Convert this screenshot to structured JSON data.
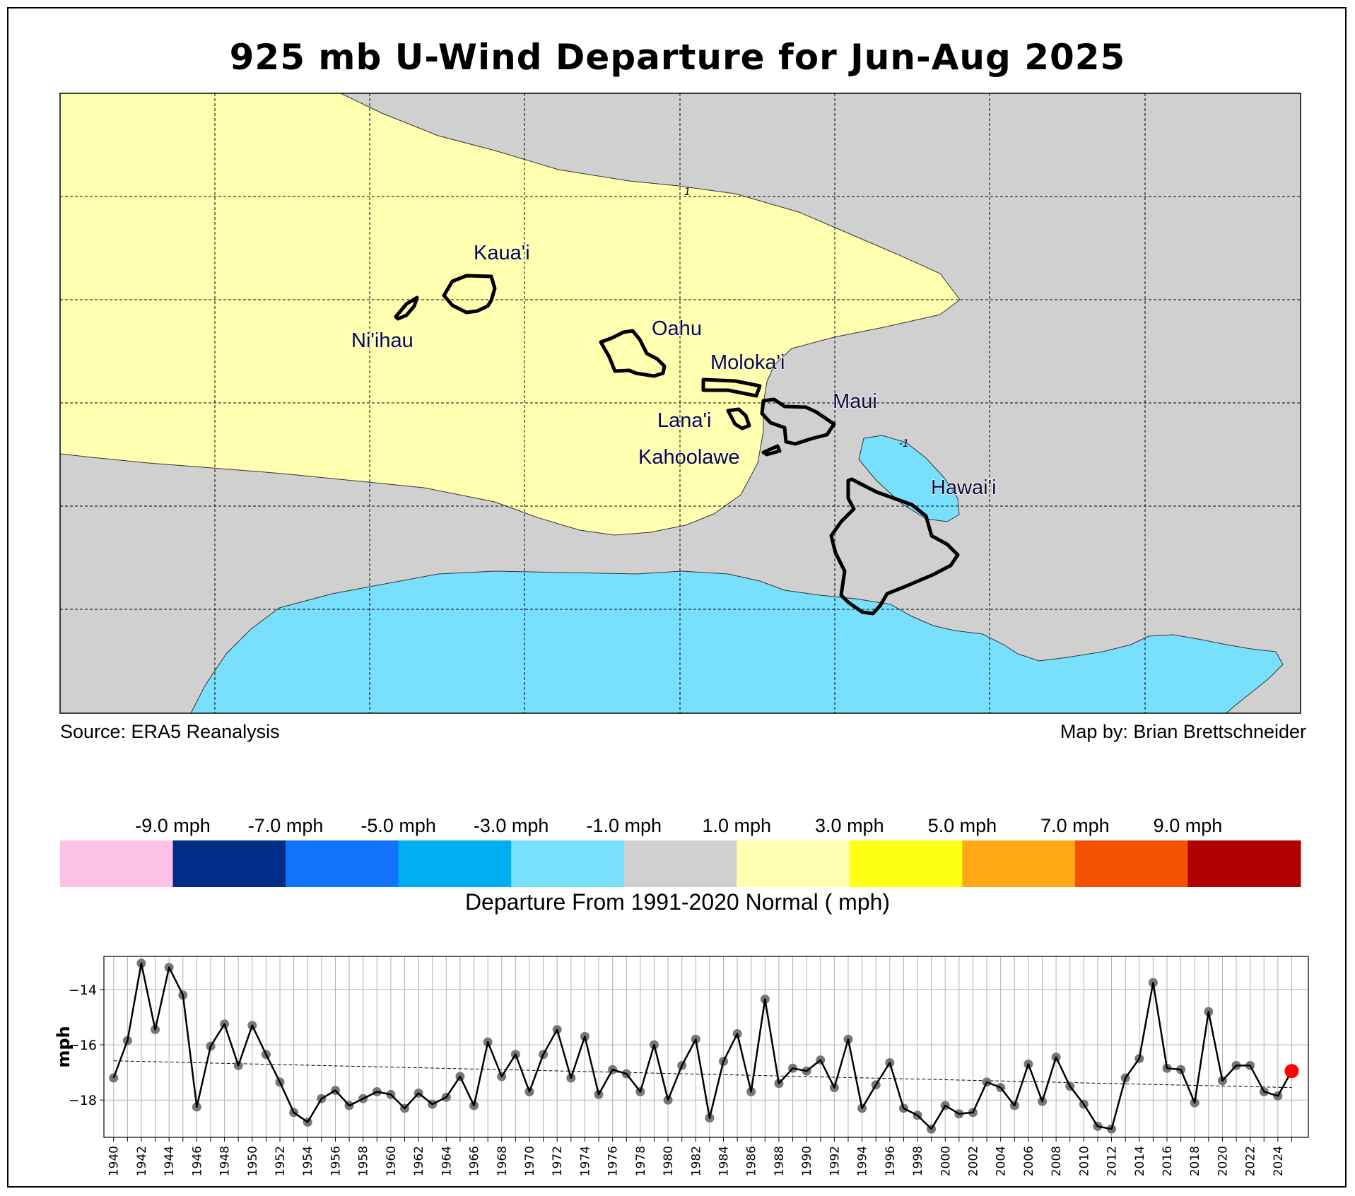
{
  "title": "925 mb U-Wind Departure for Jun-Aug 2025",
  "map": {
    "source_label": "Source: ERA5 Reanalysis",
    "credit_label": "Map by: Brian Brettschneider",
    "contour_labels": [
      "1",
      "-1"
    ],
    "islands": [
      "Kaua'i",
      "Ni'ihau",
      "Oahu",
      "Moloka'i",
      "Maui",
      "Lana'i",
      "Kahoolawe",
      "Hawai'i"
    ],
    "fill_colors": {
      "near_normal": "#d0d0d0",
      "positive": "#ffffb0",
      "negative": "#78e0fd"
    }
  },
  "colorbar": {
    "title": "Departure From 1991-2020 Normal ( mph)",
    "tick_labels": [
      "-9.0 mph",
      "-7.0 mph",
      "-5.0 mph",
      "-3.0 mph",
      "-1.0 mph",
      "1.0 mph",
      "3.0 mph",
      "5.0 mph",
      "7.0 mph",
      "9.0 mph"
    ],
    "colors": [
      "#fdc0e6",
      "#002e87",
      "#0f74fb",
      "#00aff1",
      "#78e0fd",
      "#d0d0d0",
      "#ffffb0",
      "#ffff14",
      "#fea915",
      "#f35200",
      "#b00000"
    ]
  },
  "chart_data": {
    "type": "line",
    "xlabel": "",
    "ylabel": "mph",
    "xlim": [
      1939.3,
      2026.2
    ],
    "ylim": [
      -19.35,
      -12.8
    ],
    "yticks": [
      -14,
      -16,
      -18
    ],
    "grid": true,
    "x": [
      1940,
      1941,
      1942,
      1943,
      1944,
      1945,
      1946,
      1947,
      1948,
      1949,
      1950,
      1951,
      1952,
      1953,
      1954,
      1955,
      1956,
      1957,
      1958,
      1959,
      1960,
      1961,
      1962,
      1963,
      1964,
      1965,
      1966,
      1967,
      1968,
      1969,
      1970,
      1971,
      1972,
      1973,
      1974,
      1975,
      1976,
      1977,
      1978,
      1979,
      1980,
      1981,
      1982,
      1983,
      1984,
      1985,
      1986,
      1987,
      1988,
      1989,
      1990,
      1991,
      1992,
      1993,
      1994,
      1995,
      1996,
      1997,
      1998,
      1999,
      2000,
      2001,
      2002,
      2003,
      2004,
      2005,
      2006,
      2007,
      2008,
      2009,
      2010,
      2011,
      2012,
      2013,
      2014,
      2015,
      2016,
      2017,
      2018,
      2019,
      2020,
      2021,
      2022,
      2023,
      2024,
      2025
    ],
    "y": [
      -17.2,
      -15.85,
      -13.05,
      -15.45,
      -13.2,
      -14.2,
      -18.25,
      -16.05,
      -15.25,
      -16.75,
      -15.3,
      -16.35,
      -17.35,
      -18.45,
      -18.8,
      -17.95,
      -17.65,
      -18.2,
      -17.95,
      -17.7,
      -17.8,
      -18.3,
      -17.75,
      -18.15,
      -17.9,
      -17.15,
      -18.2,
      -15.9,
      -17.15,
      -16.35,
      -17.7,
      -16.35,
      -15.45,
      -17.2,
      -15.7,
      -17.8,
      -16.9,
      -17.05,
      -17.7,
      -16.0,
      -18.0,
      -16.75,
      -15.8,
      -18.65,
      -16.6,
      -15.6,
      -17.7,
      -14.35,
      -17.4,
      -16.85,
      -16.95,
      -16.55,
      -17.55,
      -15.8,
      -18.3,
      -17.45,
      -16.65,
      -18.3,
      -18.55,
      -19.05,
      -18.2,
      -18.5,
      -18.45,
      -17.35,
      -17.55,
      -18.2,
      -16.7,
      -18.05,
      -16.45,
      -17.5,
      -18.15,
      -18.95,
      -19.05,
      -17.2,
      -16.5,
      -13.75,
      -16.85,
      -16.9,
      -18.1,
      -14.8,
      -17.3,
      -16.75,
      -16.75,
      -17.7,
      -17.85,
      -16.95
    ],
    "trend": {
      "x": [
        1940,
        2025
      ],
      "y": [
        -16.58,
        -17.55
      ]
    },
    "highlight_index": 85,
    "series_color": "#000000",
    "marker_color": "#777777",
    "highlight_color": "#ff0000"
  }
}
